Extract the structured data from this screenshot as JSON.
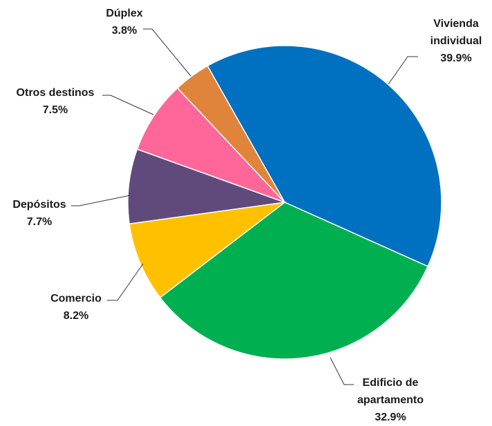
{
  "chart_data": {
    "type": "pie",
    "categories": [
      "Vivienda individual",
      "Edificio de apartamento",
      "Comercio",
      "Depósitos",
      "Otros destinos",
      "Dúplex"
    ],
    "values": [
      39.9,
      32.9,
      8.2,
      7.7,
      7.5,
      3.8
    ],
    "value_labels": [
      "39.9%",
      "32.9%",
      "8.2%",
      "7.7%",
      "7.5%",
      "3.8%"
    ],
    "colors": [
      "#0070c0",
      "#00b050",
      "#ffc000",
      "#604a7b",
      "#ff6699",
      "#e0843c"
    ]
  }
}
